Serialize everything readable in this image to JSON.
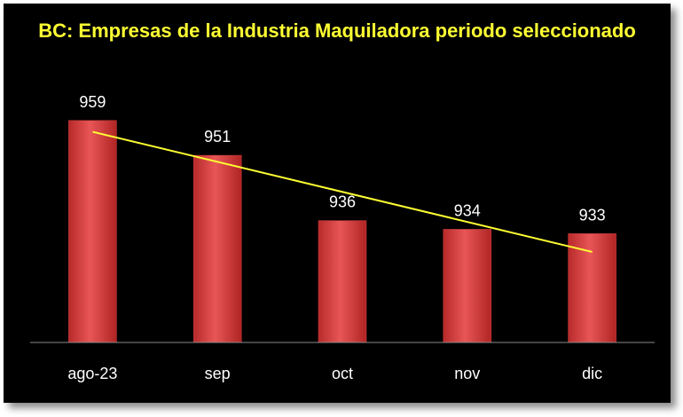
{
  "chart_data": {
    "type": "bar",
    "title": "BC: Empresas de la Industria Maquiladora periodo seleccionado",
    "title_color": "#ffff33",
    "background": "#000000",
    "bar_color": "#d94040",
    "trendline_color": "#ffff33",
    "categories": [
      "ago-23",
      "sep",
      "oct",
      "nov",
      "dic"
    ],
    "values": [
      959,
      951,
      936,
      934,
      933
    ],
    "data_labels": [
      "959",
      "951",
      "936",
      "934",
      "933"
    ],
    "xlabel": "",
    "ylabel": "",
    "ylim": [
      908,
      961
    ],
    "trendline": "linear",
    "grid": false,
    "legend": "none"
  }
}
